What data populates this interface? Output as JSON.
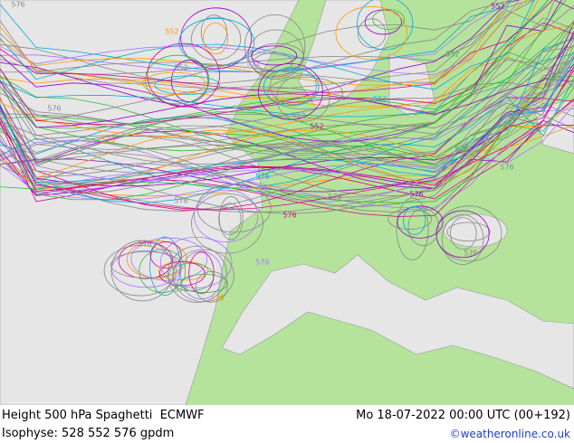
{
  "header": {
    "title": "Height 500 hPa Spaghetti",
    "model": "ECMWF"
  },
  "valid_time": "Mo 18-07-2022 00:00 UTC (00+192)",
  "isophyse": "Isophyse: 528 552 576 gpdm",
  "credit": "©weatheronline.co.uk",
  "contour_labels": [
    "576",
    "576",
    "576",
    "576",
    "576",
    "576",
    "576",
    "576",
    "576",
    "576",
    "576",
    "576",
    "552",
    "552",
    "552",
    "552",
    "552",
    "552",
    "552",
    "552",
    "576",
    "576",
    "576",
    "576"
  ]
}
